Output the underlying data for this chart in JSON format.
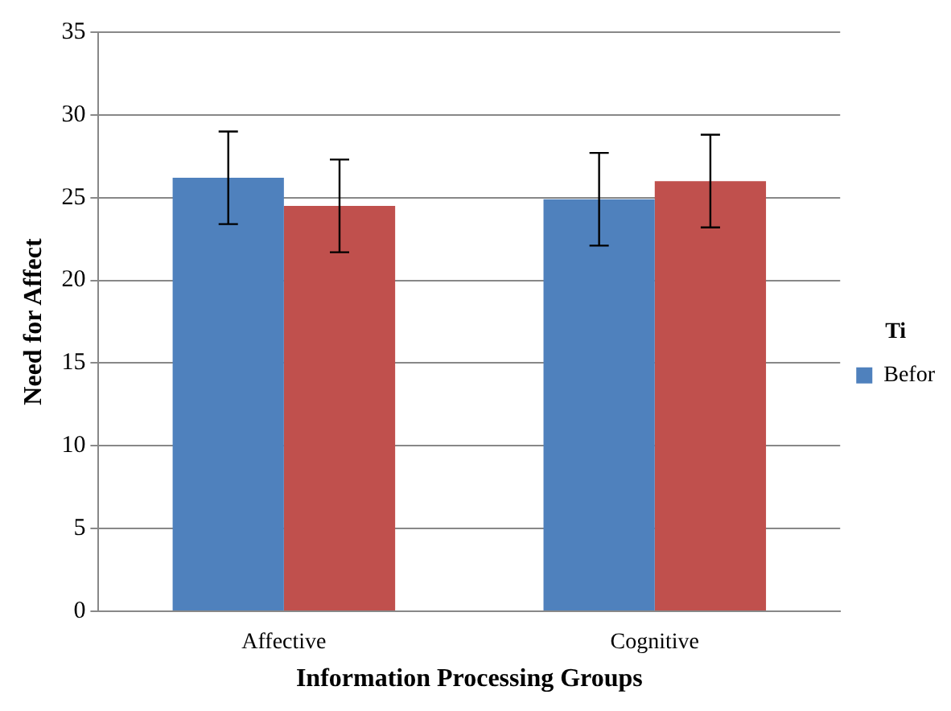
{
  "chart_data": {
    "type": "bar",
    "xlabel": "Information Processing Groups",
    "ylabel": "Need for Affect",
    "legend_title": "Ti",
    "categories": [
      "Affective",
      "Cognitive"
    ],
    "series": [
      {
        "name": "Befor",
        "color": "#4f81bd",
        "values": [
          26.2,
          24.9
        ],
        "errors": [
          2.8,
          2.8
        ]
      },
      {
        "color": "#c0504d",
        "values": [
          24.5,
          26.0
        ],
        "errors": [
          2.8,
          2.8
        ]
      }
    ],
    "ylim": [
      0,
      35
    ],
    "yticks": [
      0,
      5,
      10,
      15,
      20,
      25,
      30,
      35
    ],
    "grid": "y",
    "legend": "right"
  }
}
